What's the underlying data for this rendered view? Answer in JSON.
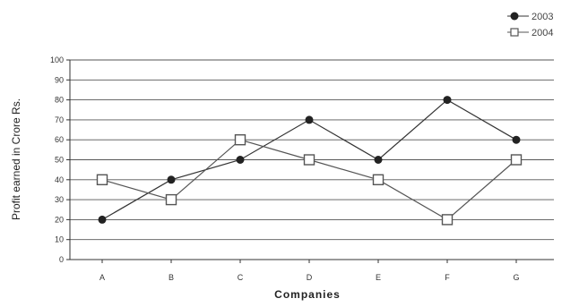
{
  "chart_data": {
    "type": "line",
    "title": "",
    "xlabel": "Companies",
    "ylabel": "Profit earned in Crore Rs.",
    "categories": [
      "A",
      "B",
      "C",
      "D",
      "E",
      "F",
      "G"
    ],
    "ylim": [
      0,
      100
    ],
    "yticks": [
      0,
      10,
      20,
      30,
      40,
      50,
      60,
      70,
      80,
      90,
      100
    ],
    "grid": true,
    "legend_position": "top-right",
    "series": [
      {
        "name": "2003",
        "values": [
          20,
          40,
          50,
          70,
          50,
          80,
          60
        ],
        "marker": "filled-circle",
        "color": "#333333"
      },
      {
        "name": "2004",
        "values": [
          40,
          30,
          60,
          50,
          40,
          20,
          50
        ],
        "marker": "hollow-square",
        "color": "#555555"
      }
    ]
  }
}
